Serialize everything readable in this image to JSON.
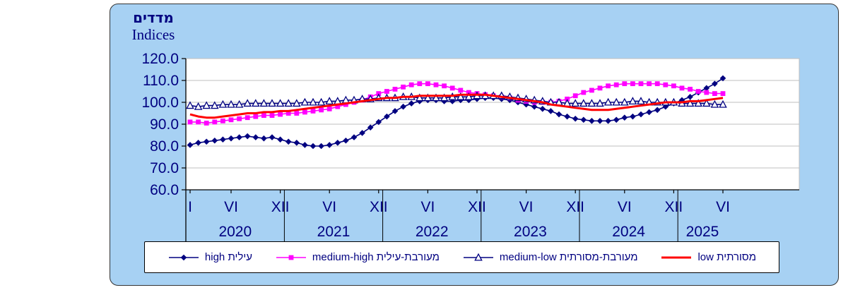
{
  "title": {
    "hebrew": "מדדים",
    "english": "Indices"
  },
  "colors": {
    "panel_background": "#A7D1F3",
    "panel_border": "#333333",
    "plot_background": "#FFFFFF",
    "gridline": "#BFBFBF",
    "axis": "#000000",
    "text": "#000080",
    "legend_background": "#FFFFFF",
    "legend_border": "#000000"
  },
  "chart_data": {
    "type": "line",
    "title": "מדדים / Indices",
    "xlabel": "",
    "ylabel": "",
    "ylim": [
      60,
      120
    ],
    "grid": true,
    "legend_position": "bottom",
    "y_ticks": [
      "120.0",
      "110.0",
      "100.0",
      "90.0",
      "80.0",
      "70.0",
      "60.0"
    ],
    "x_ticks": [
      {
        "label": "I",
        "month": 0
      },
      {
        "label": "VI",
        "month": 5
      },
      {
        "label": "XII",
        "month": 11
      },
      {
        "label": "VI",
        "month": 17
      },
      {
        "label": "XII",
        "month": 23
      },
      {
        "label": "VI",
        "month": 29
      },
      {
        "label": "XII",
        "month": 35
      },
      {
        "label": "VI",
        "month": 41
      },
      {
        "label": "XII",
        "month": 47
      },
      {
        "label": "VI",
        "month": 53
      },
      {
        "label": "XII",
        "month": 59
      },
      {
        "label": "VI",
        "month": 65
      }
    ],
    "years": [
      {
        "label": "2020",
        "center": 5.5
      },
      {
        "label": "2021",
        "center": 17.5
      },
      {
        "label": "2022",
        "center": 29.5
      },
      {
        "label": "2023",
        "center": 41.5
      },
      {
        "label": "2024",
        "center": 53.5
      },
      {
        "label": "2025",
        "center": 62.5
      }
    ],
    "year_separators": [
      11.5,
      23.5,
      35.5,
      47.5,
      59.5
    ],
    "series": [
      {
        "name": "high עילית",
        "color": "#000080",
        "marker": "diamond",
        "line_width": 1.6,
        "values": [
          80.5,
          81.5,
          82,
          82.5,
          83,
          83.5,
          84,
          84.5,
          84,
          83.5,
          84,
          83,
          82,
          81.5,
          80.5,
          80,
          80,
          80.5,
          81.5,
          82.5,
          84,
          86,
          88.5,
          91,
          93.5,
          96,
          98,
          99.5,
          100.5,
          101,
          101,
          100.5,
          100.5,
          101,
          101,
          101.5,
          102,
          102,
          101.5,
          101,
          100,
          99,
          98,
          97,
          96,
          94.5,
          93.5,
          92.5,
          92,
          91.5,
          91.5,
          91.5,
          92,
          93,
          93.5,
          94.5,
          95.5,
          96.5,
          98,
          99.5,
          101,
          102.5,
          104.5,
          106.5,
          108.5,
          111
        ]
      },
      {
        "name": "medium-high מעורבת-עילית",
        "color": "#FF00FF",
        "marker": "square",
        "line_width": 1.6,
        "values": [
          91,
          91,
          90.5,
          91,
          91.5,
          92,
          92.5,
          93,
          93.5,
          94,
          94,
          94.5,
          95,
          95,
          95.5,
          96,
          96.5,
          97,
          98,
          99,
          100,
          101,
          102.5,
          104,
          105,
          106,
          107,
          108,
          108.5,
          108.5,
          108,
          107.5,
          106.5,
          105.5,
          104.5,
          104,
          103.5,
          103,
          102.5,
          102,
          101,
          100.5,
          100,
          100,
          100,
          100.5,
          101.5,
          103,
          104.5,
          105.5,
          106.5,
          107.5,
          108,
          108.5,
          108.5,
          108.5,
          108.5,
          108.5,
          108,
          107.5,
          106.5,
          106,
          105,
          104.5,
          104,
          104
        ]
      },
      {
        "name": "medium-low מעורבת-מסורתית",
        "color": "#000080",
        "marker": "triangle-open",
        "marker_fill": "#FFFFFF",
        "line_width": 1.6,
        "values": [
          98.5,
          98,
          98.5,
          98.5,
          99,
          99,
          99,
          99.5,
          99.5,
          99.5,
          99.5,
          99.5,
          99.5,
          99.5,
          100,
          100,
          100,
          100.5,
          100.5,
          101,
          101,
          101.5,
          101.5,
          102,
          102,
          102,
          102.5,
          102.5,
          102,
          102,
          102,
          102,
          102.5,
          102.5,
          102.5,
          103,
          103,
          103,
          103,
          102.5,
          102,
          101.5,
          101,
          100.5,
          100,
          100,
          99.5,
          99.5,
          99.5,
          99.5,
          99.5,
          100,
          100,
          100,
          100.5,
          100.5,
          100,
          100,
          100,
          100,
          99.5,
          99.5,
          99.5,
          99.5,
          99,
          99
        ]
      },
      {
        "name": "low מסורתית",
        "color": "#FF0000",
        "marker": "none",
        "line_width": 3,
        "values": [
          94.5,
          93.5,
          93,
          93,
          93.5,
          94,
          94.5,
          95,
          95,
          95.5,
          95.5,
          96,
          96,
          96.5,
          97,
          97.5,
          98,
          98.5,
          99,
          99.5,
          100,
          100.5,
          101,
          101.5,
          102,
          102,
          102.5,
          102.5,
          103,
          103,
          103,
          103,
          103,
          103.5,
          103.5,
          103.5,
          103.5,
          103,
          102.5,
          102,
          101.5,
          101,
          100.5,
          100,
          99,
          98.5,
          98,
          97.5,
          97,
          96.5,
          96.5,
          96.5,
          97,
          97.5,
          98,
          98.5,
          99,
          99.5,
          100,
          100,
          100,
          100.5,
          100.5,
          101,
          101.5,
          102
        ]
      }
    ]
  }
}
